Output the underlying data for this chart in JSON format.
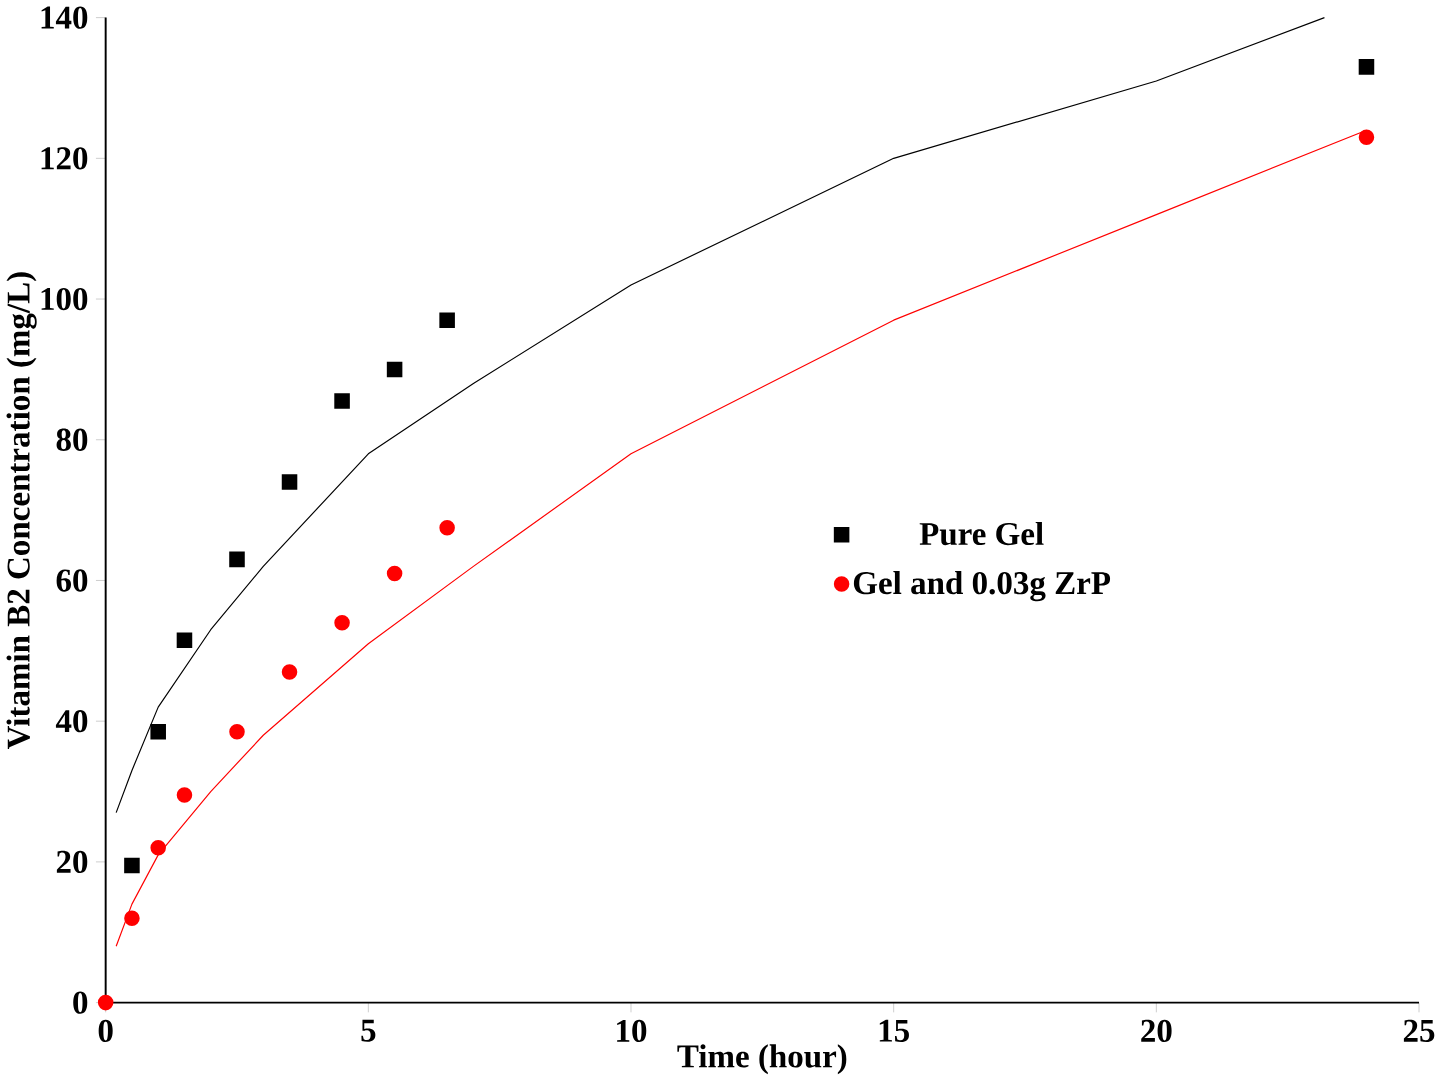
{
  "chart_data": {
    "type": "scatter",
    "xlabel": "Time (hour)",
    "ylabel": "Vitamin B2 Concentration (mg/L)",
    "xlim": [
      0,
      25
    ],
    "ylim": [
      0,
      140
    ],
    "xticks": [
      0,
      5,
      10,
      15,
      20,
      25
    ],
    "yticks": [
      0,
      20,
      40,
      60,
      80,
      100,
      120,
      140
    ],
    "legend": "right",
    "grid": false,
    "series": [
      {
        "name": "Pure Gel",
        "color": "#000000",
        "marker": "square",
        "x": [
          0.5,
          1,
          1.5,
          2.5,
          3.5,
          4.5,
          5.5,
          6.5,
          24
        ],
        "values": [
          19.5,
          38.5,
          51.5,
          63,
          74,
          85.5,
          90,
          97,
          133
        ]
      },
      {
        "name": "Gel and 0.03g ZrP",
        "color": "#ff0000",
        "marker": "circle",
        "x": [
          0,
          0.5,
          1,
          1.5,
          2.5,
          3.5,
          4.5,
          5.5,
          6.5,
          24
        ],
        "values": [
          0,
          12,
          22,
          29.5,
          38.5,
          47,
          54,
          61,
          67.5,
          123
        ]
      },
      {
        "type": "line",
        "color": "#000000",
        "marker": "none",
        "x": [
          0.2,
          0.5,
          1,
          2,
          3,
          5,
          7,
          10,
          15,
          20,
          23.2
        ],
        "values": [
          27,
          33,
          42,
          53,
          62,
          78,
          88,
          102,
          120,
          131,
          140
        ]
      },
      {
        "type": "line",
        "color": "#ff0000",
        "marker": "none",
        "x": [
          0.2,
          0.5,
          1,
          2,
          3,
          5,
          7,
          10,
          15,
          20,
          24
        ],
        "values": [
          8,
          14,
          21,
          30,
          38,
          51,
          62,
          78,
          97,
          112,
          124
        ]
      }
    ]
  }
}
